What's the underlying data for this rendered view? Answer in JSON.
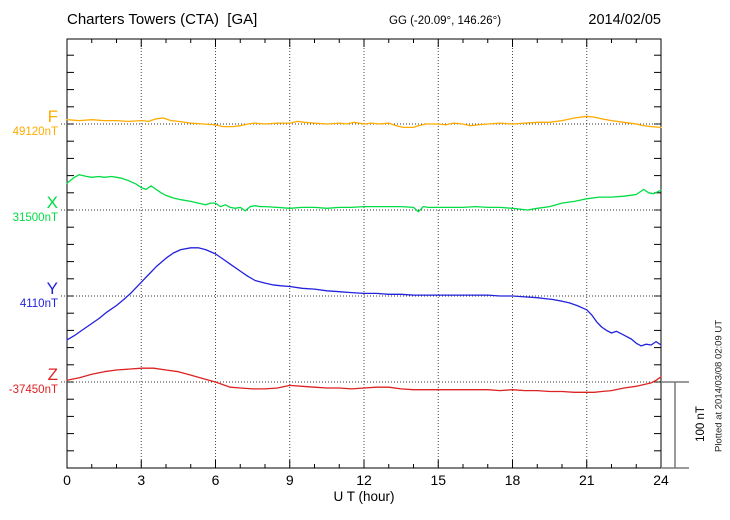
{
  "footer_note": "Plotted at 2014/03/08 02:09 UT",
  "chart_data": {
    "type": "line",
    "title": "Charters Towers (CTA)  [GA]",
    "subtitle": "GG (-20.09°, 146.26°)",
    "date": "2014/02/05",
    "xlabel": "U T (hour)",
    "y_units": "nT",
    "x_range_hours": [
      0,
      24
    ],
    "x_major_ticks": [
      0,
      3,
      6,
      9,
      12,
      15,
      18,
      21,
      24
    ],
    "x_minor_step_hours": 1,
    "y_tick_step_nT": 20,
    "grid": "dotted vertical lines every 3 h; dotted horizontal line at each series baseline",
    "scale_bar": {
      "label": "100 nT",
      "span_nT": 100
    },
    "points_format": "[UT_hour, delta_nT_from_baseline]",
    "series": [
      {
        "label": "F",
        "value_label": "49120nT",
        "baseline_nT": 49120,
        "color": "#ffab00",
        "points": [
          [
            0,
            5
          ],
          [
            0.5,
            4
          ],
          [
            1,
            5
          ],
          [
            1.5,
            4
          ],
          [
            2,
            4
          ],
          [
            2.5,
            3
          ],
          [
            3,
            4
          ],
          [
            3.3,
            3
          ],
          [
            3.6,
            6
          ],
          [
            3.9,
            7
          ],
          [
            4.2,
            4
          ],
          [
            4.5,
            3
          ],
          [
            5,
            1
          ],
          [
            5.5,
            0
          ],
          [
            6,
            -1
          ],
          [
            6.3,
            -3
          ],
          [
            6.7,
            -3
          ],
          [
            7,
            -2
          ],
          [
            7.3,
            0
          ],
          [
            7.6,
            1
          ],
          [
            8,
            0
          ],
          [
            8.5,
            1
          ],
          [
            9,
            1
          ],
          [
            9.3,
            3
          ],
          [
            9.6,
            2
          ],
          [
            10,
            1
          ],
          [
            10.5,
            0
          ],
          [
            11,
            1
          ],
          [
            11.3,
            0
          ],
          [
            11.6,
            2
          ],
          [
            12,
            0
          ],
          [
            12.3,
            1
          ],
          [
            12.6,
            0
          ],
          [
            13,
            1
          ],
          [
            13.3,
            -2
          ],
          [
            13.6,
            -4
          ],
          [
            14,
            -4
          ],
          [
            14.2,
            -2
          ],
          [
            14.5,
            0
          ],
          [
            15,
            0
          ],
          [
            15.3,
            -1
          ],
          [
            15.6,
            1
          ],
          [
            16,
            0
          ],
          [
            16.3,
            -2
          ],
          [
            16.6,
            -1
          ],
          [
            17,
            0
          ],
          [
            17.5,
            1
          ],
          [
            18,
            0
          ],
          [
            18.5,
            1
          ],
          [
            19,
            2
          ],
          [
            19.5,
            2
          ],
          [
            20,
            4
          ],
          [
            20.5,
            7
          ],
          [
            21,
            9
          ],
          [
            21.3,
            8
          ],
          [
            21.6,
            6
          ],
          [
            22,
            4
          ],
          [
            22.5,
            2
          ],
          [
            23,
            0
          ],
          [
            23.3,
            -2
          ],
          [
            23.6,
            -3
          ],
          [
            24,
            -4
          ]
        ]
      },
      {
        "label": "X",
        "value_label": "31500nT",
        "baseline_nT": 31500,
        "color": "#00dd44",
        "points": [
          [
            0,
            31
          ],
          [
            0.3,
            38
          ],
          [
            0.5,
            41
          ],
          [
            0.8,
            39
          ],
          [
            1,
            38
          ],
          [
            1.3,
            39
          ],
          [
            1.5,
            38
          ],
          [
            1.8,
            39
          ],
          [
            2,
            38
          ],
          [
            2.2,
            37
          ],
          [
            2.5,
            34
          ],
          [
            2.8,
            30
          ],
          [
            3,
            26
          ],
          [
            3.2,
            24
          ],
          [
            3.4,
            28
          ],
          [
            3.6,
            24
          ],
          [
            3.8,
            20
          ],
          [
            4,
            17
          ],
          [
            4.3,
            14
          ],
          [
            4.6,
            12
          ],
          [
            5,
            10
          ],
          [
            5.3,
            8
          ],
          [
            5.6,
            6
          ],
          [
            5.8,
            8
          ],
          [
            6,
            8
          ],
          [
            6.2,
            4
          ],
          [
            6.4,
            6
          ],
          [
            6.6,
            3
          ],
          [
            6.8,
            2
          ],
          [
            7,
            3
          ],
          [
            7.2,
            -1
          ],
          [
            7.4,
            4
          ],
          [
            7.6,
            5
          ],
          [
            7.8,
            4
          ],
          [
            8,
            4
          ],
          [
            8.5,
            3
          ],
          [
            9,
            2
          ],
          [
            9.5,
            3
          ],
          [
            10,
            3
          ],
          [
            10.5,
            2
          ],
          [
            11,
            3
          ],
          [
            11.5,
            3
          ],
          [
            12,
            4
          ],
          [
            12.5,
            4
          ],
          [
            13,
            4
          ],
          [
            13.5,
            4
          ],
          [
            14,
            3
          ],
          [
            14.2,
            -2
          ],
          [
            14.4,
            4
          ],
          [
            14.6,
            3
          ],
          [
            15,
            3
          ],
          [
            15.5,
            3
          ],
          [
            16,
            3
          ],
          [
            16.5,
            4
          ],
          [
            17,
            3
          ],
          [
            17.5,
            3
          ],
          [
            18,
            2
          ],
          [
            18.3,
            1
          ],
          [
            18.6,
            0
          ],
          [
            19,
            2
          ],
          [
            19.5,
            4
          ],
          [
            20,
            8
          ],
          [
            20.5,
            10
          ],
          [
            21,
            13
          ],
          [
            21.5,
            15
          ],
          [
            22,
            15
          ],
          [
            22.5,
            16
          ],
          [
            23,
            18
          ],
          [
            23.3,
            24
          ],
          [
            23.5,
            20
          ],
          [
            23.7,
            19
          ],
          [
            24,
            23
          ]
        ]
      },
      {
        "label": "Y",
        "value_label": "4110nT",
        "baseline_nT": 4110,
        "color": "#2222dd",
        "points": [
          [
            0,
            -51
          ],
          [
            0.3,
            -46
          ],
          [
            0.6,
            -40
          ],
          [
            1,
            -32
          ],
          [
            1.3,
            -26
          ],
          [
            1.6,
            -19
          ],
          [
            2,
            -11
          ],
          [
            2.3,
            -4
          ],
          [
            2.6,
            4
          ],
          [
            3,
            16
          ],
          [
            3.3,
            25
          ],
          [
            3.6,
            34
          ],
          [
            4,
            44
          ],
          [
            4.3,
            50
          ],
          [
            4.6,
            54
          ],
          [
            5,
            56
          ],
          [
            5.3,
            56
          ],
          [
            5.6,
            54
          ],
          [
            6,
            49
          ],
          [
            6.3,
            43
          ],
          [
            6.6,
            37
          ],
          [
            7,
            29
          ],
          [
            7.3,
            23
          ],
          [
            7.6,
            18
          ],
          [
            8,
            15
          ],
          [
            8.3,
            13
          ],
          [
            8.6,
            12
          ],
          [
            9,
            11
          ],
          [
            9.5,
            9
          ],
          [
            10,
            8
          ],
          [
            10.5,
            6
          ],
          [
            11,
            5
          ],
          [
            11.5,
            4
          ],
          [
            12,
            3
          ],
          [
            12.5,
            3
          ],
          [
            13,
            2
          ],
          [
            13.5,
            2
          ],
          [
            14,
            1
          ],
          [
            14.5,
            1
          ],
          [
            15,
            1
          ],
          [
            15.5,
            1
          ],
          [
            16,
            1
          ],
          [
            16.5,
            1
          ],
          [
            17,
            1
          ],
          [
            17.5,
            0
          ],
          [
            18,
            0
          ],
          [
            18.5,
            -1
          ],
          [
            19,
            -2
          ],
          [
            19.3,
            -3
          ],
          [
            19.6,
            -4
          ],
          [
            20,
            -6
          ],
          [
            20.3,
            -8
          ],
          [
            20.6,
            -11
          ],
          [
            21,
            -16
          ],
          [
            21.2,
            -22
          ],
          [
            21.4,
            -30
          ],
          [
            21.6,
            -36
          ],
          [
            21.8,
            -40
          ],
          [
            22,
            -43
          ],
          [
            22.2,
            -41
          ],
          [
            22.4,
            -44
          ],
          [
            22.6,
            -47
          ],
          [
            22.8,
            -50
          ],
          [
            23,
            -55
          ],
          [
            23.2,
            -58
          ],
          [
            23.4,
            -56
          ],
          [
            23.6,
            -57
          ],
          [
            23.8,
            -53
          ],
          [
            24,
            -57
          ]
        ]
      },
      {
        "label": "Z",
        "value_label": "-37450nT",
        "baseline_nT": -37450,
        "color": "#dd2222",
        "points": [
          [
            0,
            2
          ],
          [
            0.5,
            5
          ],
          [
            1,
            9
          ],
          [
            1.5,
            12
          ],
          [
            2,
            14
          ],
          [
            2.5,
            15
          ],
          [
            3,
            16
          ],
          [
            3.5,
            16
          ],
          [
            4,
            14
          ],
          [
            4.5,
            12
          ],
          [
            5,
            8
          ],
          [
            5.5,
            4
          ],
          [
            6,
            0
          ],
          [
            6.3,
            -3
          ],
          [
            6.6,
            -6
          ],
          [
            7,
            -7
          ],
          [
            7.5,
            -8
          ],
          [
            8,
            -8
          ],
          [
            8.5,
            -7
          ],
          [
            9,
            -4
          ],
          [
            9.5,
            -5
          ],
          [
            10,
            -6
          ],
          [
            10.5,
            -7
          ],
          [
            11,
            -7
          ],
          [
            11.5,
            -8
          ],
          [
            12,
            -7
          ],
          [
            12.5,
            -6
          ],
          [
            13,
            -6
          ],
          [
            13.5,
            -8
          ],
          [
            14,
            -9
          ],
          [
            14.5,
            -9
          ],
          [
            15,
            -9
          ],
          [
            15.5,
            -9
          ],
          [
            16,
            -9
          ],
          [
            16.5,
            -9
          ],
          [
            17,
            -9
          ],
          [
            17.5,
            -10
          ],
          [
            18,
            -9
          ],
          [
            18.5,
            -10
          ],
          [
            19,
            -10
          ],
          [
            19.5,
            -11
          ],
          [
            20,
            -11
          ],
          [
            20.5,
            -12
          ],
          [
            21,
            -12
          ],
          [
            21.3,
            -12
          ],
          [
            21.6,
            -11
          ],
          [
            22,
            -10
          ],
          [
            22.5,
            -7
          ],
          [
            23,
            -5
          ],
          [
            23.3,
            -3
          ],
          [
            23.6,
            -1
          ],
          [
            23.8,
            2
          ],
          [
            24,
            6
          ]
        ]
      }
    ]
  }
}
